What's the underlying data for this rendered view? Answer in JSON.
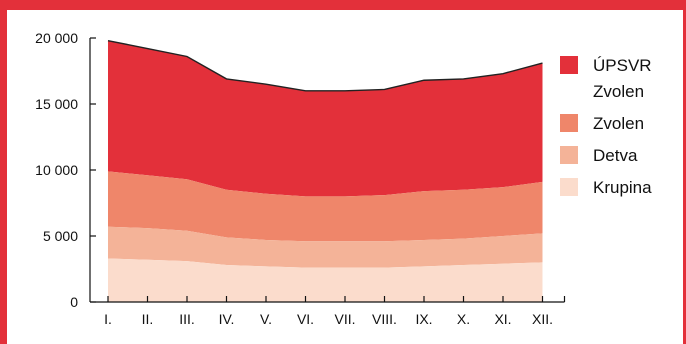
{
  "colors": {
    "accent": "#e3303a",
    "series": [
      "#fbdccc",
      "#f4b398",
      "#ef866a",
      "#e3303a"
    ]
  },
  "chart_data": {
    "type": "area",
    "stacked": true,
    "title": "",
    "xlabel": "",
    "ylabel": "",
    "categories": [
      "I.",
      "II.",
      "III.",
      "IV.",
      "V.",
      "VI.",
      "VII.",
      "VIII.",
      "IX.",
      "X.",
      "XI.",
      "XII."
    ],
    "ylim": [
      0,
      20000
    ],
    "yticks": [
      0,
      5000,
      10000,
      15000,
      20000
    ],
    "ytick_labels": [
      "0",
      "5 000",
      "10 000",
      "15 000",
      "20 000"
    ],
    "grid": false,
    "legend_position": "right",
    "series": [
      {
        "name": "Krupina",
        "values": [
          3300,
          3200,
          3100,
          2800,
          2700,
          2600,
          2600,
          2600,
          2700,
          2800,
          2900,
          3000
        ]
      },
      {
        "name": "Detva",
        "values": [
          2400,
          2400,
          2300,
          2100,
          2000,
          2000,
          2000,
          2000,
          2000,
          2000,
          2100,
          2200
        ]
      },
      {
        "name": "Zvolen",
        "values": [
          4200,
          4000,
          3900,
          3600,
          3500,
          3400,
          3400,
          3500,
          3700,
          3700,
          3700,
          3900
        ]
      },
      {
        "name": "ÚPSVR Zvolen",
        "values": [
          9900,
          9600,
          9300,
          8400,
          8300,
          8000,
          8000,
          8000,
          8400,
          8400,
          8600,
          9000
        ]
      }
    ],
    "legend": [
      {
        "lines": [
          "ÚPSVR",
          "Zvolen"
        ],
        "series_index": 3
      },
      {
        "lines": [
          "Zvolen"
        ],
        "series_index": 2
      },
      {
        "lines": [
          "Detva"
        ],
        "series_index": 1
      },
      {
        "lines": [
          "Krupina"
        ],
        "series_index": 0
      }
    ]
  }
}
